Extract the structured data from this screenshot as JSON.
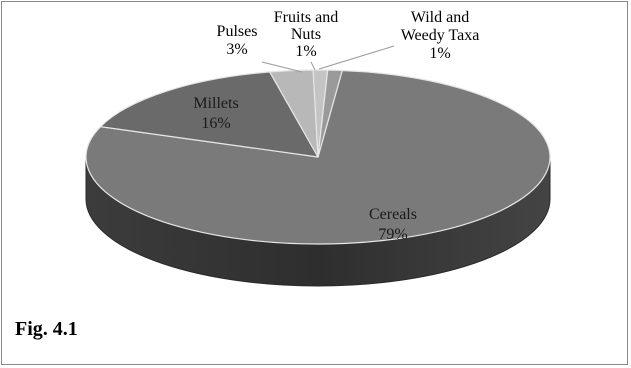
{
  "chart_data": {
    "type": "pie",
    "title": "",
    "style": "3d",
    "legend": "none",
    "slices": [
      {
        "name": "Cereals",
        "percent": 79,
        "percent_label": "79%",
        "color": "#7a7a7a"
      },
      {
        "name": "Millets",
        "percent": 16,
        "percent_label": "16%",
        "color": "#6a6a6a"
      },
      {
        "name": "Pulses",
        "percent": 3,
        "percent_label": "3%",
        "color": "#b8b8b8"
      },
      {
        "name": "Fruits and Nuts",
        "name_lines": [
          "Fruits and",
          "Nuts"
        ],
        "percent": 1,
        "percent_label": "1%",
        "color": "#c4c4c4"
      },
      {
        "name": "Wild and Weedy Taxa",
        "name_lines": [
          "Wild and",
          "Weedy Taxa"
        ],
        "percent": 1,
        "percent_label": "1%",
        "color": "#9a9a9a"
      }
    ]
  },
  "caption": "Fig. 4.1",
  "colors": {
    "side_dark": "#3a3a3a",
    "separator": "#e6e6e6",
    "cereals_label": "#1a1a1a",
    "millets_label": "#1a1a1a",
    "outside_label": "#000000"
  }
}
